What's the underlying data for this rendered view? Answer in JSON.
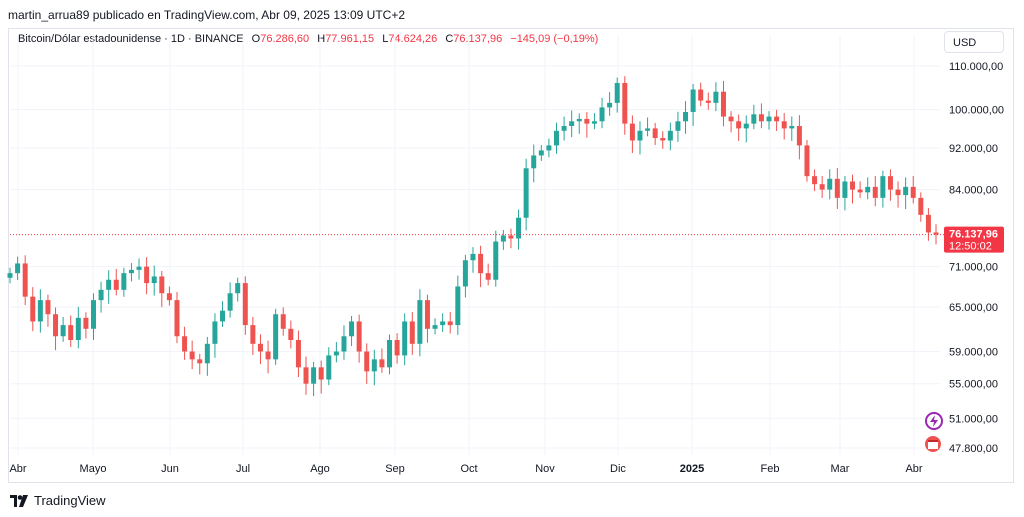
{
  "attribution": "martin_arrua89 publicado en TradingView.com, Abr 09, 2025 13:09 UTC+2",
  "legend": {
    "symbol": "Bitcoin/Dólar estadounidense · 1D · BINANCE",
    "o_label": "O",
    "o_value": "76.286,60",
    "h_label": "H",
    "h_value": "77.961,15",
    "l_label": "L",
    "l_value": "74.624,26",
    "c_label": "C",
    "c_value": "76.137,96",
    "change": "−145,09 (−0,19%)"
  },
  "currency": "USD",
  "price_badge": {
    "price": "76.137,96",
    "countdown": "12:50:02"
  },
  "footer": {
    "brand": "TradingView"
  },
  "colors": {
    "up": "#26a69a",
    "down": "#ef5350",
    "badge": "#f23645",
    "grid": "#f0f3fa"
  },
  "chart_data": {
    "type": "candlestick",
    "y_scale": "log",
    "y_ticks": [
      {
        "value": 110000,
        "label": "110.000,00"
      },
      {
        "value": 100000,
        "label": "100.000,00"
      },
      {
        "value": 92000,
        "label": "92.000,00"
      },
      {
        "value": 84000,
        "label": "84.000,00"
      },
      {
        "value": 71000,
        "label": "71.000,00"
      },
      {
        "value": 65000,
        "label": "65.000,00"
      },
      {
        "value": 59000,
        "label": "59.000,00"
      },
      {
        "value": 55000,
        "label": "55.000,00"
      },
      {
        "value": 51000,
        "label": "51.000,00"
      },
      {
        "value": 47800,
        "label": "47.800,00"
      }
    ],
    "x_ticks": [
      "Abr",
      "Mayo",
      "Jun",
      "Jul",
      "Ago",
      "Sep",
      "Oct",
      "Nov",
      "Dic",
      "2025",
      "Feb",
      "Mar",
      "Abr"
    ],
    "last_price": 76137.96,
    "closes": [
      70000,
      71500,
      66500,
      63000,
      66000,
      64000,
      61000,
      62500,
      60500,
      63500,
      62000,
      66000,
      67500,
      69000,
      67500,
      70000,
      70500,
      71000,
      68500,
      69500,
      67000,
      66000,
      61000,
      59000,
      58000,
      57500,
      60000,
      63000,
      64500,
      67000,
      68500,
      62500,
      60000,
      59000,
      58000,
      64000,
      62000,
      60500,
      57000,
      55000,
      57000,
      55500,
      58500,
      59000,
      61000,
      63000,
      59000,
      56500,
      58000,
      57000,
      60500,
      58500,
      63000,
      60000,
      66000,
      62000,
      62500,
      63000,
      62500,
      68000,
      72000,
      73000,
      70000,
      69000,
      75000,
      76000,
      75500,
      79000,
      88000,
      90500,
      91500,
      92500,
      95500,
      96500,
      97500,
      98000,
      97000,
      97500,
      100500,
      101500,
      106000,
      97000,
      93500,
      95500,
      96000,
      94000,
      93500,
      95500,
      97500,
      99500,
      104500,
      102000,
      101500,
      104000,
      98500,
      97500,
      96000,
      97000,
      99000,
      97500,
      98500,
      97500,
      96000,
      96500,
      92500,
      86500,
      85000,
      84000,
      86000,
      82500,
      85500,
      84000,
      83500,
      84500,
      82500,
      86500,
      84000,
      83000,
      84500,
      82500,
      79500,
      76500,
      76137.96
    ]
  }
}
